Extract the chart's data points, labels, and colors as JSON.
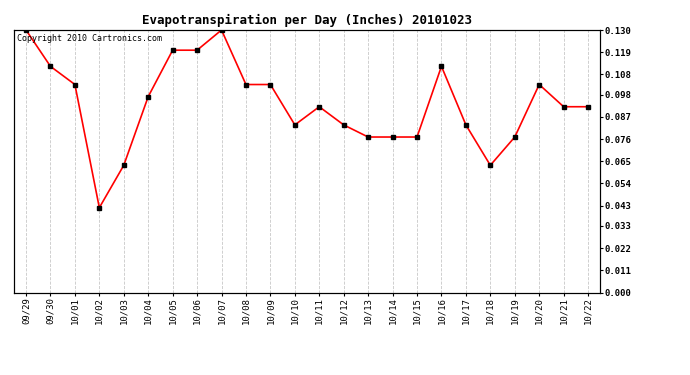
{
  "title": "Evapotranspiration per Day (Inches) 20101023",
  "copyright_text": "Copyright 2010 Cartronics.com",
  "dates": [
    "09/29",
    "09/30",
    "10/01",
    "10/02",
    "10/03",
    "10/04",
    "10/05",
    "10/06",
    "10/07",
    "10/08",
    "10/09",
    "10/10",
    "10/11",
    "10/12",
    "10/13",
    "10/14",
    "10/15",
    "10/16",
    "10/17",
    "10/18",
    "10/19",
    "10/20",
    "10/21",
    "10/22"
  ],
  "values": [
    0.13,
    0.112,
    0.103,
    0.042,
    0.063,
    0.097,
    0.12,
    0.12,
    0.13,
    0.103,
    0.103,
    0.083,
    0.092,
    0.083,
    0.077,
    0.077,
    0.077,
    0.112,
    0.083,
    0.063,
    0.077,
    0.103,
    0.092,
    0.092
  ],
  "line_color": "#ff0000",
  "marker": "s",
  "marker_size": 2.5,
  "marker_color": "#000000",
  "background_color": "#ffffff",
  "plot_bg_color": "#ffffff",
  "grid_color": "#c8c8c8",
  "ylim": [
    0.0,
    0.13
  ],
  "yticks": [
    0.0,
    0.011,
    0.022,
    0.033,
    0.043,
    0.054,
    0.065,
    0.076,
    0.087,
    0.098,
    0.108,
    0.119,
    0.13
  ],
  "title_fontsize": 9,
  "copyright_fontsize": 6,
  "tick_fontsize": 6.5
}
